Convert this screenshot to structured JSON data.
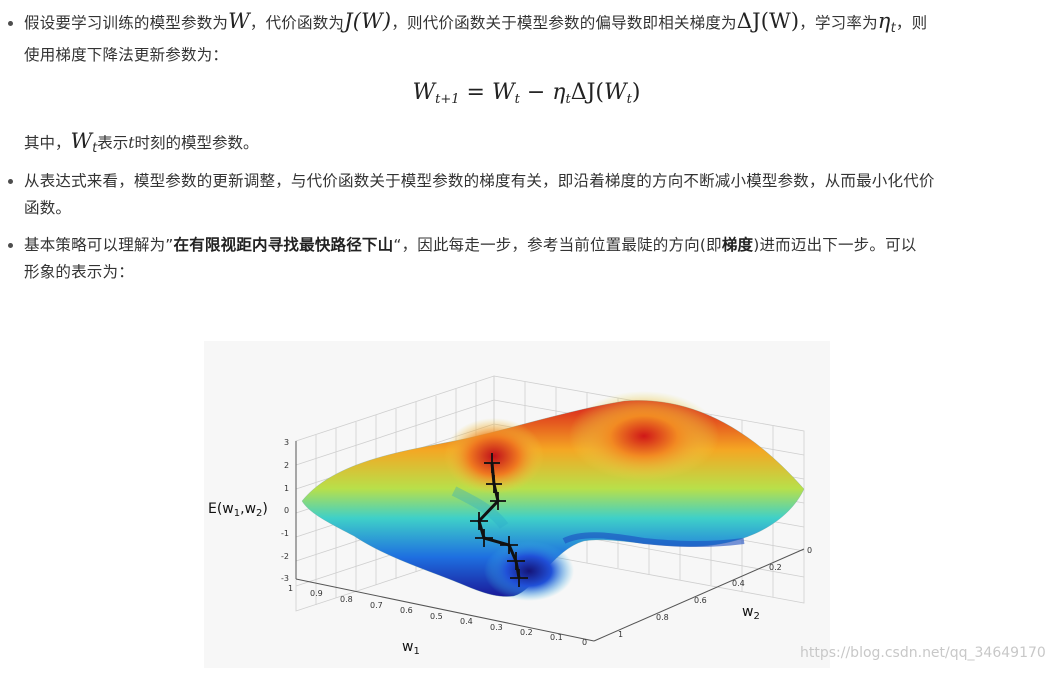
{
  "bullet1": {
    "a": "假设要学习训练的模型参数为",
    "W": "W",
    "b": "，代价函数为",
    "JW": "J(W)",
    "c": "，则代价函数关于模型参数的偏导数即相关梯度为",
    "dJW": "ΔJ(W)",
    "d": "，学习率为",
    "eta": "η",
    "eta_sub": "t",
    "e": "，则",
    "line2": "使用梯度下降法更新参数为："
  },
  "formula": {
    "lhs": "W",
    "lhs_sub": "t+1",
    "eq": " = ",
    "w": "W",
    "w_sub": "t",
    "minus": " − ",
    "eta": "η",
    "eta_sub": "t",
    "delta": "ΔJ(",
    "w2": "W",
    "w2_sub": "t",
    "close": ")"
  },
  "note": {
    "a": "其中，",
    "W": "W",
    "W_sub": "t",
    "b": "表示",
    "t": "t",
    "c": "时刻的模型参数。"
  },
  "bullet2": {
    "line1": "从表达式来看，模型参数的更新调整，与代价函数关于模型参数的梯度有关，即沿着梯度的方向不断减小模型参数，从而最小化代价",
    "line2": "函数。"
  },
  "bullet3": {
    "a": "基本策略可以理解为”",
    "bold1": "在有限视距内寻找最快路径下山",
    "b": "“，因此每走一步，参考当前位置最陡的方向(即",
    "bold2": "梯度",
    "c": ")进而迈出下一步。可以",
    "line2": "形象的表示为："
  },
  "figure": {
    "zlabel": "E(w",
    "zlabel_sub1": "1",
    "zlabel_mid": ",w",
    "zlabel_sub2": "2",
    "zlabel_end": ")",
    "xlabel": "w",
    "xlabel_sub": "1",
    "ylabel": "w",
    "ylabel_sub": "2",
    "z_ticks": [
      "3",
      "2",
      "1",
      "0",
      "-1",
      "-2",
      "-3"
    ],
    "x_ticks": [
      "1",
      "0.9",
      "0.8",
      "0.7",
      "0.6",
      "0.5",
      "0.4",
      "0.3",
      "0.2",
      "0.1",
      "0"
    ],
    "y_ticks": [
      "0",
      "0.2",
      "0.4",
      "0.6",
      "0.8",
      "1"
    ]
  },
  "watermark": "https://blog.csdn.net/qq_34649170"
}
